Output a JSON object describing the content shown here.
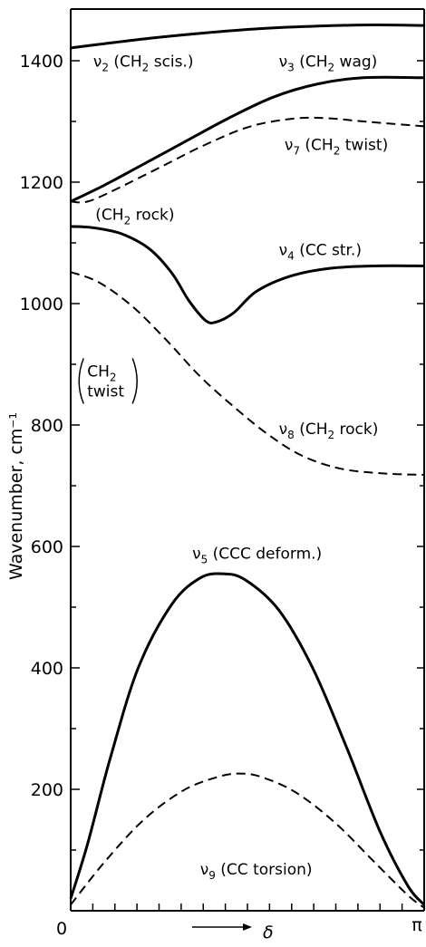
{
  "chart_data": {
    "type": "line",
    "ylabel": "Wavenumber, cm⁻¹",
    "xlabel": "δ",
    "ylim": [
      0,
      1470
    ],
    "xlim": [
      0,
      3.14159
    ],
    "yticks": [
      "0",
      "200",
      "400",
      "600",
      "800",
      "1000",
      "1200",
      "1400"
    ],
    "xticks": [
      "0",
      "π"
    ],
    "series": [
      {
        "name": "ν2 (CH2 scis.)",
        "style": "solid",
        "points": [
          [
            0,
            1421
          ],
          [
            0.3,
            1428
          ],
          [
            0.7,
            1437
          ],
          [
            1.2,
            1446
          ],
          [
            1.7,
            1453
          ],
          [
            2.2,
            1457
          ],
          [
            2.7,
            1459
          ],
          [
            3.14159,
            1458
          ]
        ]
      },
      {
        "name": "ν3 (CH2 wag)",
        "style": "solid",
        "points": [
          [
            0,
            1168
          ],
          [
            0.3,
            1195
          ],
          [
            0.6,
            1225
          ],
          [
            1.0,
            1265
          ],
          [
            1.4,
            1305
          ],
          [
            1.8,
            1340
          ],
          [
            2.2,
            1362
          ],
          [
            2.6,
            1372
          ],
          [
            3.14159,
            1372
          ]
        ]
      },
      {
        "name": "ν7 (CH2 twist)",
        "style": "dashed",
        "points": [
          [
            0,
            1168
          ],
          [
            0.15,
            1168
          ],
          [
            0.4,
            1188
          ],
          [
            0.8,
            1225
          ],
          [
            1.2,
            1262
          ],
          [
            1.6,
            1292
          ],
          [
            2.0,
            1305
          ],
          [
            2.3,
            1305
          ],
          [
            2.6,
            1300
          ],
          [
            3.14159,
            1292
          ]
        ]
      },
      {
        "name": "ν4 (CC str.)",
        "style": "solid",
        "points": [
          [
            0,
            1127
          ],
          [
            0.2,
            1125
          ],
          [
            0.45,
            1115
          ],
          [
            0.7,
            1090
          ],
          [
            0.9,
            1050
          ],
          [
            1.05,
            1005
          ],
          [
            1.2,
            972
          ],
          [
            1.3,
            970
          ],
          [
            1.45,
            985
          ],
          [
            1.65,
            1020
          ],
          [
            1.95,
            1045
          ],
          [
            2.3,
            1058
          ],
          [
            2.7,
            1062
          ],
          [
            3.14159,
            1062
          ]
        ]
      },
      {
        "name": "ν8 (CH2 rock)",
        "style": "dashed",
        "points": [
          [
            0,
            1052
          ],
          [
            0.25,
            1035
          ],
          [
            0.55,
            995
          ],
          [
            0.85,
            940
          ],
          [
            1.15,
            880
          ],
          [
            1.45,
            830
          ],
          [
            1.75,
            785
          ],
          [
            2.05,
            750
          ],
          [
            2.4,
            728
          ],
          [
            2.8,
            720
          ],
          [
            3.14159,
            718
          ]
        ]
      },
      {
        "name": "ν5 (CCC deform.)",
        "style": "solid",
        "points": [
          [
            0,
            20
          ],
          [
            0.15,
            110
          ],
          [
            0.35,
            250
          ],
          [
            0.6,
            400
          ],
          [
            0.9,
            505
          ],
          [
            1.15,
            548
          ],
          [
            1.35,
            555
          ],
          [
            1.55,
            545
          ],
          [
            1.85,
            495
          ],
          [
            2.15,
            400
          ],
          [
            2.45,
            270
          ],
          [
            2.75,
            130
          ],
          [
            3.0,
            40
          ],
          [
            3.14159,
            10
          ]
        ]
      },
      {
        "name": "ν9 (CC torsion)",
        "style": "dashed",
        "points": [
          [
            0,
            10
          ],
          [
            0.3,
            80
          ],
          [
            0.65,
            150
          ],
          [
            1.0,
            198
          ],
          [
            1.3,
            220
          ],
          [
            1.5,
            226
          ],
          [
            1.7,
            220
          ],
          [
            2.0,
            195
          ],
          [
            2.35,
            145
          ],
          [
            2.7,
            80
          ],
          [
            3.0,
            25
          ],
          [
            3.14159,
            5
          ]
        ]
      }
    ],
    "annotations": [
      {
        "id": "v2",
        "text_parts": [
          "ν",
          "2",
          " (CH",
          "2",
          "  scis.)"
        ],
        "x": 0.2,
        "y": 1390
      },
      {
        "id": "v3",
        "text_parts": [
          "ν",
          "3",
          " (CH",
          "2",
          " wag)"
        ],
        "x": 1.85,
        "y": 1390
      },
      {
        "id": "v7",
        "text_parts": [
          "ν",
          "7",
          "  (CH",
          "2",
          "  twist)"
        ],
        "x": 1.9,
        "y": 1253
      },
      {
        "id": "rock",
        "text_parts": [
          "(CH",
          "2",
          "  rock)"
        ],
        "x": 0.22,
        "y": 1138
      },
      {
        "id": "v4",
        "text_parts": [
          "ν",
          "4",
          "  (CC  str.)"
        ],
        "x": 1.85,
        "y": 1080
      },
      {
        "id": "twist",
        "line1_parts": [
          "CH",
          "2"
        ],
        "line2": "twist",
        "x": 0.05,
        "y": 880
      },
      {
        "id": "v8",
        "text_parts": [
          "ν",
          "8",
          " (CH",
          "2",
          "  rock)"
        ],
        "x": 1.85,
        "y": 785
      },
      {
        "id": "v5",
        "text_parts": [
          "ν",
          "5",
          "  (CCC  deform.)"
        ],
        "x": 1.08,
        "y": 580
      },
      {
        "id": "v9",
        "text_parts": [
          "ν",
          "9",
          "  (CC  torsion)"
        ],
        "x": 1.15,
        "y": 60
      }
    ]
  }
}
